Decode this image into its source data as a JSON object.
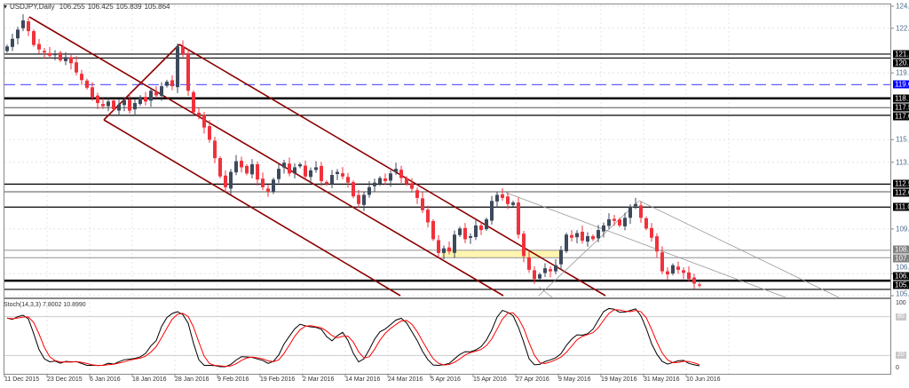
{
  "header": {
    "symbol": "USDJPY,Daily",
    "open": "106.255",
    "high": "106.425",
    "low": "105.839",
    "close": "105.864"
  },
  "indicator": {
    "label": "Stoch(14,3,3)",
    "k": "7.8002",
    "d": "10.8990",
    "levels": [
      "100",
      "80",
      "20",
      "0"
    ]
  },
  "colors": {
    "bull": "#3d4a5c",
    "bear": "#f0323c",
    "channel": "#8b0000",
    "level": "#000000",
    "dashed": "#6060ff",
    "zone": "#fff5b0",
    "stoch_main": "#000000",
    "stoch_signal": "#ff0000"
  },
  "price_axis": [
    "124.130",
    "122.690",
    "119.770",
    "115.410",
    "113.930",
    "109.570",
    "106.650",
    "105.210"
  ],
  "levels": [
    {
      "label": "121.000",
      "value": 121.0,
      "style": "black"
    },
    {
      "label": "120.745",
      "value": 120.745,
      "style": "black"
    },
    {
      "label": "119.000",
      "value": 119.0,
      "style": "blue-dashed"
    },
    {
      "label": "118.110",
      "value": 118.11,
      "style": "black-thick"
    },
    {
      "label": "117.500",
      "value": 117.5,
      "style": "thin"
    },
    {
      "label": "117.000",
      "value": 117.0,
      "style": "black"
    },
    {
      "label": "112.500",
      "value": 112.5,
      "style": "black"
    },
    {
      "label": "112.000",
      "value": 112.0,
      "style": "thin"
    },
    {
      "label": "111.000",
      "value": 111.0,
      "style": "black"
    },
    {
      "label": "108.178",
      "value": 108.178,
      "style": "gray"
    },
    {
      "label": "107.690",
      "value": 107.69,
      "style": "gray"
    },
    {
      "label": "106.191",
      "value": 106.191,
      "style": "black-thick"
    },
    {
      "label": "105.619",
      "value": 105.619,
      "style": "black"
    }
  ],
  "date_axis": [
    "11 Dec 2015",
    "23 Dec 2015",
    "6 Jan 2016",
    "18 Jan 2016",
    "28 Jan 2016",
    "9 Feb 2016",
    "19 Feb 2016",
    "2 Mar 2016",
    "14 Mar 2016",
    "24 Mar 2016",
    "5 Apr 2016",
    "15 Apr 2016",
    "27 Apr 2016",
    "9 May 2016",
    "19 May 2016",
    "31 May 2016",
    "10 Jun 2016"
  ],
  "chart_data": {
    "type": "candlestick",
    "title": "USDJPY,Daily",
    "ylim": [
      105.21,
      124.13
    ],
    "closes": [
      121.5,
      122.0,
      122.6,
      123.2,
      122.5,
      121.6,
      121.3,
      121.1,
      120.9,
      121.0,
      120.6,
      120.8,
      120.4,
      119.8,
      119.3,
      118.8,
      118.2,
      117.8,
      117.6,
      117.9,
      117.4,
      117.7,
      118.0,
      117.3,
      117.8,
      118.2,
      117.9,
      118.6,
      118.3,
      118.9,
      119.2,
      118.9,
      121.5,
      121.0,
      118.6,
      117.2,
      117.0,
      116.2,
      115.4,
      114.2,
      113.0,
      112.3,
      113.3,
      114.0,
      113.6,
      113.2,
      113.8,
      112.8,
      112.3,
      112.0,
      112.8,
      113.5,
      113.9,
      113.2,
      113.6,
      113.8,
      113.0,
      113.4,
      113.6,
      112.7,
      112.5,
      113.1,
      113.3,
      113.0,
      112.6,
      111.7,
      111.2,
      111.8,
      112.3,
      112.6,
      112.9,
      112.7,
      113.2,
      113.5,
      112.9,
      112.5,
      112.2,
      111.6,
      110.8,
      110.0,
      108.9,
      108.0,
      108.3,
      108.1,
      109.2,
      109.6,
      108.9,
      109.1,
      109.8,
      109.5,
      110.2,
      111.4,
      111.8,
      111.6,
      111.2,
      111.3,
      109.2,
      107.8,
      106.9,
      106.3,
      106.6,
      107.0,
      106.8,
      107.2,
      108.2,
      109.2,
      109.0,
      109.3,
      108.8,
      109.1,
      108.9,
      109.5,
      109.8,
      110.2,
      110.1,
      109.8,
      110.3,
      111.0,
      111.2,
      110.3,
      109.6,
      109.0,
      108.1,
      106.8,
      106.6,
      107.2,
      106.9,
      106.7,
      106.3,
      106.0,
      105.864
    ]
  }
}
